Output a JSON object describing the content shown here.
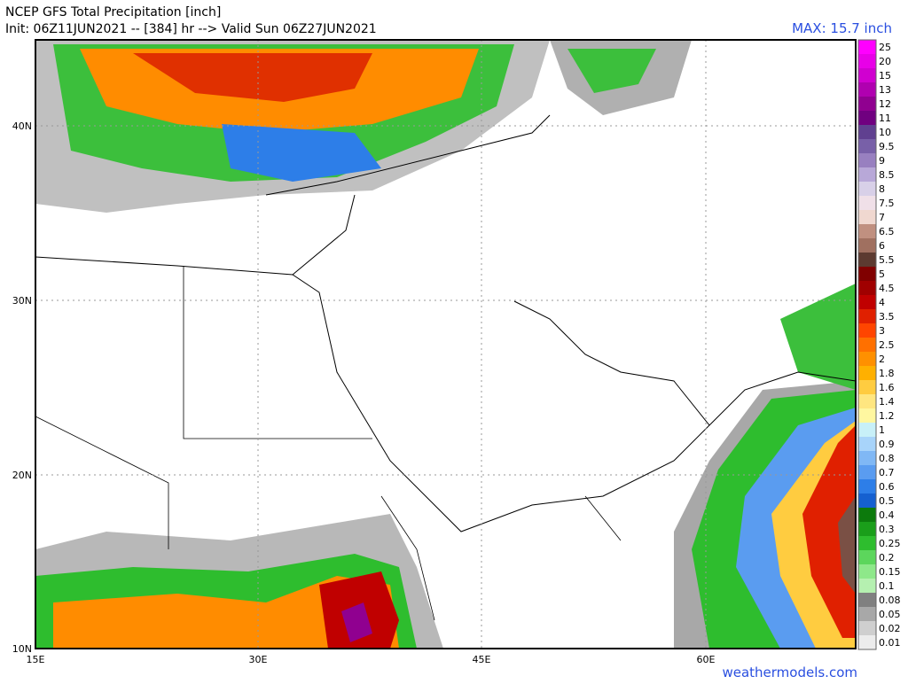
{
  "header": {
    "title": "NCEP GFS Total Precipitation [inch]",
    "init": "Init: 06Z11JUN2021 -- [384] hr --> Valid Sun 06Z27JUN2021",
    "max": "MAX: 15.7 inch"
  },
  "axes": {
    "lon": [
      "15E",
      "30E",
      "45E",
      "60E"
    ],
    "lat": [
      "40N",
      "30N",
      "20N",
      "10N"
    ]
  },
  "colorbar": [
    {
      "label": "25",
      "color": "#ff00ff"
    },
    {
      "label": "20",
      "color": "#e800e8"
    },
    {
      "label": "15",
      "color": "#d000d0"
    },
    {
      "label": "13",
      "color": "#b000b0"
    },
    {
      "label": "12",
      "color": "#900090"
    },
    {
      "label": "11",
      "color": "#700080"
    },
    {
      "label": "10",
      "color": "#604090"
    },
    {
      "label": "9.5",
      "color": "#7860a8"
    },
    {
      "label": "9",
      "color": "#9880c0"
    },
    {
      "label": "8.5",
      "color": "#b8a8d8"
    },
    {
      "label": "8",
      "color": "#d8d0e8"
    },
    {
      "label": "7.5",
      "color": "#f0e0e8"
    },
    {
      "label": "7",
      "color": "#f0d8d0"
    },
    {
      "label": "6.5",
      "color": "#c09080"
    },
    {
      "label": "6",
      "color": "#a07060"
    },
    {
      "label": "5.5",
      "color": "#5c3a30"
    },
    {
      "label": "5",
      "color": "#800000"
    },
    {
      "label": "4.5",
      "color": "#a00000"
    },
    {
      "label": "4",
      "color": "#c00000"
    },
    {
      "label": "3.5",
      "color": "#e02000"
    },
    {
      "label": "3",
      "color": "#ff4500"
    },
    {
      "label": "2.5",
      "color": "#ff7000"
    },
    {
      "label": "2",
      "color": "#ff9000"
    },
    {
      "label": "1.8",
      "color": "#ffb000"
    },
    {
      "label": "1.6",
      "color": "#ffcc40"
    },
    {
      "label": "1.4",
      "color": "#ffe680"
    },
    {
      "label": "1.2",
      "color": "#fff7a0"
    },
    {
      "label": "1",
      "color": "#c8f0f8"
    },
    {
      "label": "0.9",
      "color": "#a8d4fa"
    },
    {
      "label": "0.8",
      "color": "#80b8f5"
    },
    {
      "label": "0.7",
      "color": "#5a9cf0"
    },
    {
      "label": "0.6",
      "color": "#2d7ee8"
    },
    {
      "label": "0.5",
      "color": "#1560d0"
    },
    {
      "label": "0.4",
      "color": "#0c7a0c"
    },
    {
      "label": "0.3",
      "color": "#1a9e1a"
    },
    {
      "label": "0.25",
      "color": "#2ebd2e"
    },
    {
      "label": "0.2",
      "color": "#5cd65c"
    },
    {
      "label": "0.15",
      "color": "#8ee88a"
    },
    {
      "label": "0.1",
      "color": "#b5f0b0"
    },
    {
      "label": "0.08",
      "color": "#808080"
    },
    {
      "label": "0.05",
      "color": "#a8a8a8"
    },
    {
      "label": "0.02",
      "color": "#cfcfcf"
    },
    {
      "label": "0.01",
      "color": "#ececec"
    }
  ],
  "footer": {
    "credit": "weathermodels.com"
  }
}
